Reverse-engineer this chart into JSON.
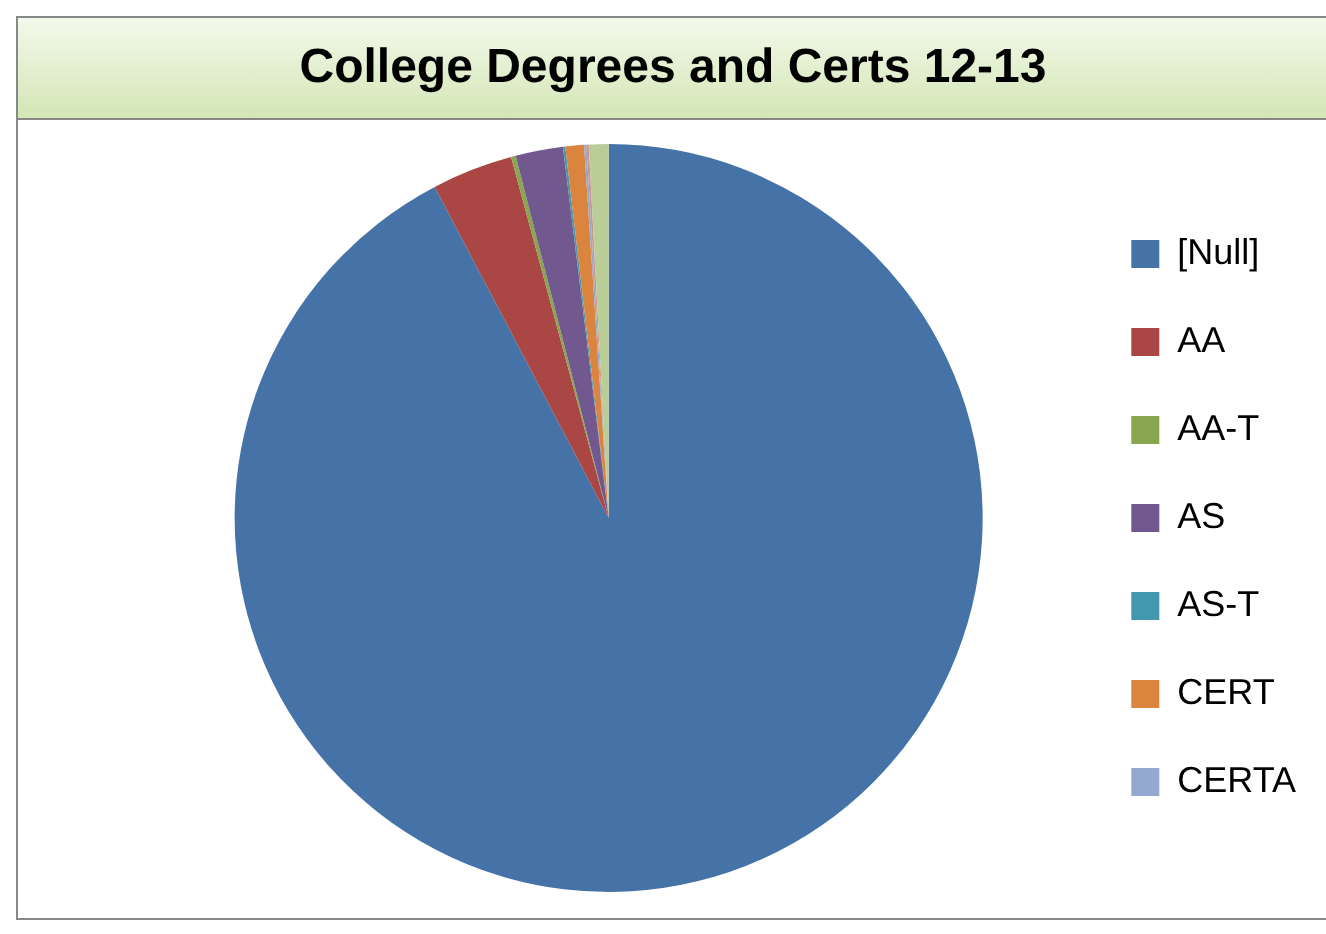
{
  "chart_data": {
    "type": "pie",
    "title": "College Degrees and Certs 12-13",
    "categories": [
      "[Null]",
      "AA",
      "AA-T",
      "AS",
      "AS-T",
      "CERT",
      "CERTA",
      null,
      null
    ],
    "values": [
      92.3,
      3.5,
      0.2,
      2.05,
      0.1,
      0.8,
      0.1,
      0.1,
      0.85
    ],
    "colors": [
      "#4572a7",
      "#aa4643",
      "#89a54e",
      "#71588f",
      "#4198af",
      "#db843d",
      "#93a9cf",
      "#d19392",
      "#b9cd96"
    ],
    "legend": "right"
  }
}
